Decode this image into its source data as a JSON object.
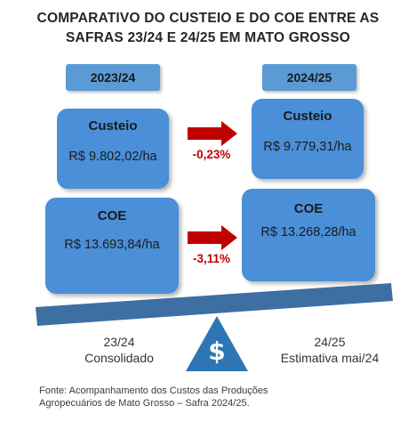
{
  "title": {
    "line1": "COMPARATIVO DO CUSTEIO E DO COE ENTRE AS",
    "line2": "SAFRAS 23/24 E 24/25 EM MATO GROSSO"
  },
  "left": {
    "year": "2023/24",
    "custeio_label": "Custeio",
    "custeio_value": "R$ 9.802,02/ha",
    "coe_label": "COE",
    "coe_value": "R$ 13.693,84/ha",
    "footer_line1": "23/24",
    "footer_line2": "Consolidado"
  },
  "right": {
    "year": "2024/25",
    "custeio_label": "Custeio",
    "custeio_value": "R$ 9.779,31/ha",
    "coe_label": "COE",
    "coe_value": "R$ 13.268,28/ha",
    "footer_line1": "24/25",
    "footer_line2": "Estimativa mai/24"
  },
  "changes": {
    "custeio": "-0,23%",
    "coe": "-3,11%"
  },
  "fulcrum_symbol": "$",
  "source": {
    "line1": "Fonte: Acompanhamento dos Custos das Produções",
    "line2": "Agropecuários de Mato Grosso – Safra 2024/25."
  },
  "colors": {
    "box_blue": "#4a8fd8",
    "tag_blue": "#5b9bd5",
    "beam": "#3d6fa3",
    "fulcrum": "#2e75b6",
    "arrow_red": "#c00000"
  }
}
